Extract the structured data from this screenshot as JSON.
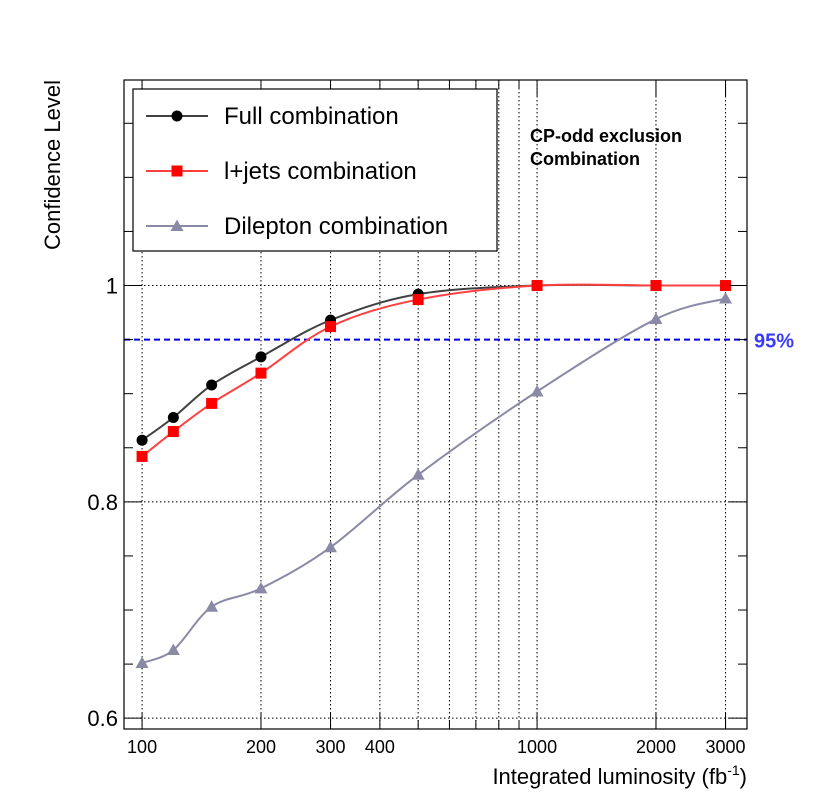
{
  "chart_data": {
    "type": "line",
    "xscale": "log",
    "xlim": [
      90,
      3400
    ],
    "ylim": [
      0.59,
      1.19
    ],
    "xlabel": "Integrated luminosity (fb",
    "xlabel_sup": "-1",
    "xlabel_close": ")",
    "ylabel": "Confidence Level",
    "xticks": [
      100,
      200,
      300,
      400,
      1000,
      2000,
      3000
    ],
    "xtick_labels": [
      "100",
      "200",
      "300",
      "400",
      "1000",
      "2000",
      "3000"
    ],
    "xgrid": [
      100,
      200,
      300,
      400,
      500,
      600,
      700,
      800,
      900,
      1000,
      2000,
      3000
    ],
    "yticks": [
      0.6,
      0.8,
      1.0
    ],
    "ytick_labels": [
      "0.6",
      "0.8",
      "1"
    ],
    "grid": true,
    "annotation": [
      "CP-odd exclusion",
      "Combination"
    ],
    "reference_line": {
      "y": 0.95,
      "label": "95%",
      "color": "#0000dd",
      "label_color": "#3a3aff"
    },
    "legend_position": "top-left",
    "series": [
      {
        "name": "Full combination",
        "color": "#404040",
        "marker": "circle",
        "x": [
          100,
          120,
          150,
          200,
          300,
          500,
          1000,
          2000,
          3000
        ],
        "values": [
          0.857,
          0.878,
          0.908,
          0.934,
          0.968,
          0.992,
          1.0,
          1.0,
          1.0
        ]
      },
      {
        "name": "l+jets combination",
        "color": "#ff4040",
        "marker_color": "#ff0000",
        "marker": "square",
        "x": [
          100,
          120,
          150,
          200,
          300,
          500,
          1000,
          2000,
          3000
        ],
        "values": [
          0.842,
          0.865,
          0.891,
          0.919,
          0.962,
          0.987,
          1.0,
          1.0,
          1.0
        ]
      },
      {
        "name": "Dilepton combination",
        "color": "#8a8aa6",
        "marker": "triangle",
        "x": [
          100,
          120,
          150,
          200,
          300,
          500,
          1000,
          2000,
          3000
        ],
        "values": [
          0.651,
          0.663,
          0.703,
          0.72,
          0.758,
          0.825,
          0.902,
          0.969,
          0.988
        ]
      }
    ]
  }
}
